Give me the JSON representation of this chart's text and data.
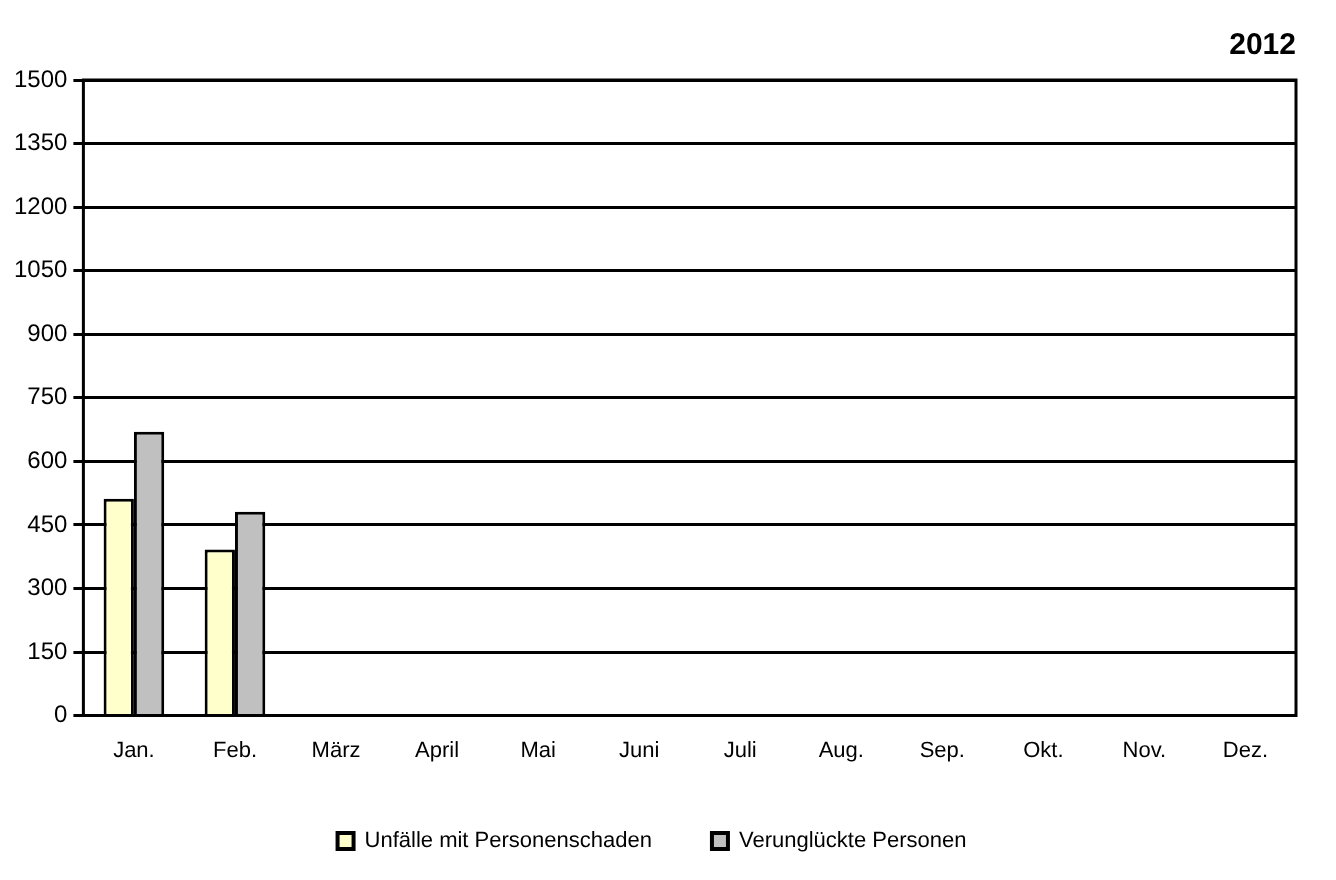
{
  "chart_data": {
    "type": "bar",
    "title": "2012",
    "categories": [
      "Jan.",
      "Feb.",
      "März",
      "April",
      "Mai",
      "Juni",
      "Juli",
      "Aug.",
      "Sep.",
      "Okt.",
      "Nov.",
      "Dez."
    ],
    "series": [
      {
        "name": "Unfälle mit Personenschaden",
        "color": "#ffffcc",
        "values": [
          512,
          392,
          null,
          null,
          null,
          null,
          null,
          null,
          null,
          null,
          null,
          null
        ]
      },
      {
        "name": "Verunglückte Personen",
        "color": "#c0c0c0",
        "values": [
          670,
          481,
          null,
          null,
          null,
          null,
          null,
          null,
          null,
          null,
          null,
          null
        ]
      }
    ],
    "ylim": [
      0,
      1500
    ],
    "yticks": [
      0,
      150,
      300,
      450,
      600,
      750,
      900,
      1050,
      1200,
      1350,
      1500
    ],
    "grid": "y",
    "legend": "bottom"
  }
}
